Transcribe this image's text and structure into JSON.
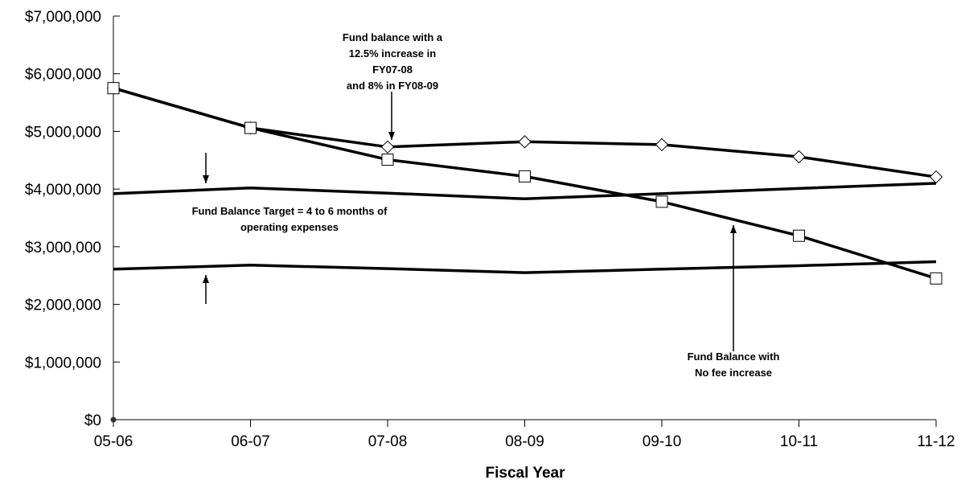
{
  "chart_data": {
    "type": "line",
    "title": "",
    "xlabel": "Fiscal Year",
    "ylabel": "",
    "categories": [
      "05-06",
      "06-07",
      "07-08",
      "08-09",
      "09-10",
      "10-11",
      "11-12"
    ],
    "ylim": [
      0,
      7000000
    ],
    "yticks": [
      0,
      1000000,
      2000000,
      3000000,
      4000000,
      5000000,
      6000000,
      7000000
    ],
    "ytick_labels": [
      "$0",
      "$1,000,000",
      "$2,000,000",
      "$3,000,000",
      "$4,000,000",
      "$5,000,000",
      "$6,000,000",
      "$7,000,000"
    ],
    "grid": false,
    "legend": "none",
    "series": [
      {
        "id": "fee-increase",
        "marker": "diamond",
        "values": [
          5750000,
          5060000,
          4730000,
          4820000,
          4770000,
          4560000,
          4210000
        ]
      },
      {
        "id": "no-fee-increase",
        "marker": "square",
        "values": [
          5750000,
          5060000,
          4510000,
          4220000,
          3780000,
          3190000,
          2450000
        ]
      },
      {
        "id": "target-upper",
        "marker": "none",
        "values": [
          3920000,
          4020000,
          3930000,
          3830000,
          3920000,
          4010000,
          4100000
        ]
      },
      {
        "id": "target-lower",
        "marker": "none",
        "values": [
          2610000,
          2680000,
          2620000,
          2550000,
          2610000,
          2670000,
          2740000
        ]
      }
    ],
    "annotations": [
      {
        "id": "fee-increase-note",
        "lines": [
          "Fund balance with a",
          "12.5% increase in",
          "FY07-08",
          "and 8% in FY08-09"
        ]
      },
      {
        "id": "target-note",
        "lines": [
          "Fund Balance Target = 4 to 6 months of",
          "operating expenses"
        ]
      },
      {
        "id": "no-fee-note",
        "lines": [
          "Fund Balance with",
          "No fee increase"
        ]
      }
    ]
  }
}
